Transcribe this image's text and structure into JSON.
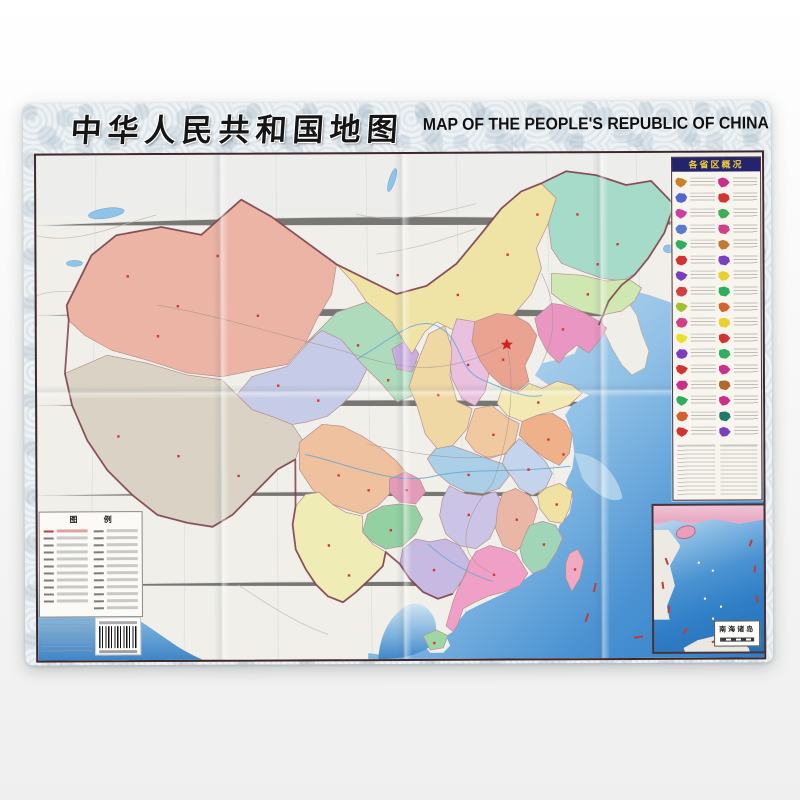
{
  "title": {
    "zh": "中华人民共和国地图",
    "en": "MAP OF THE PEOPLE'S REPUBLIC OF CHINA"
  },
  "province_panel": {
    "header": "各省区概况",
    "entries": [
      "#c8822a",
      "#cc2f8a",
      "#5566cc",
      "#d23333",
      "#cc3fa0",
      "#3fae55",
      "#5a7ad0",
      "#d23f86",
      "#2fae62",
      "#c07a33",
      "#d23333",
      "#7a3fc0",
      "#7a3fc0",
      "#e8d02f",
      "#d23f3f",
      "#2fae62",
      "#9fc02f",
      "#d2622f",
      "#d23f86",
      "#e8d02f",
      "#e8e02f",
      "#d23333",
      "#7a3fc0",
      "#2fae62",
      "#d23333",
      "#cc2f8a",
      "#cc2f8a",
      "#b06a2a",
      "#2fae62",
      "#cc2f8a",
      "#d2622f",
      "#1f7a6a",
      "#d23333",
      "#7a3fc0"
    ]
  },
  "legend": {
    "header": "图 例",
    "left_rows": 11,
    "right_rows": 12
  },
  "inset": {
    "label": "南海诸岛"
  },
  "map": {
    "colors": {
      "foreign_land": "#f0efe9",
      "sea_shallow": "#d8e8f4",
      "sea_deep": "#2f7ec6",
      "national_boundary": "#7d3f4a",
      "provinces": {
        "xinjiang": "#ecb4a4",
        "tibet": "#dad3c5",
        "qinghai": "#c6cce8",
        "gansu": "#aedbbb",
        "inner_mongolia": "#efe3a6",
        "heilongjiang": "#a6dbc9",
        "jilin": "#cfe7b0",
        "liaoning": "#ea96c3",
        "hebei": "#eaa291",
        "shanxi": "#e9c0de",
        "shaanxi": "#f0d8a4",
        "ningxia": "#c9aee0",
        "shandong": "#f2e9b4",
        "henan": "#f0c9a0",
        "jiangsu": "#eeb189",
        "anhui": "#c4d4ec",
        "hubei": "#aacfe6",
        "chongqing": "#e29cb8",
        "sichuan": "#efc19e",
        "guizhou": "#93d0a2",
        "yunnan": "#f0ecb6",
        "hunan": "#cbc4e6",
        "jiangxi": "#eab7a7",
        "zhejiang": "#f0e2a2",
        "fujian": "#a0d5b8",
        "guangdong": "#f0a0c6",
        "guangxi": "#c6bae2",
        "hainan": "#a0d5a4",
        "taiwan": "#f2aac2"
      }
    }
  }
}
